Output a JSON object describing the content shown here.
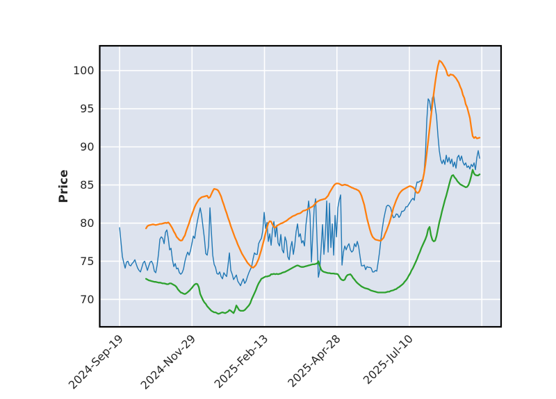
{
  "chart_data": {
    "type": "line",
    "title": "",
    "xlabel": "",
    "ylabel": "Price",
    "grid": true,
    "legend": null,
    "plot_background": "#dde3ee",
    "gridline_color": "#ffffff",
    "frame_color": "#000000",
    "ylim": [
      66.4,
      103.25
    ],
    "yticks": [
      70,
      75,
      80,
      85,
      90,
      95,
      100
    ],
    "ytick_labels": [
      "70",
      "75",
      "80",
      "85",
      "90",
      "95",
      "100"
    ],
    "xlim_days": [
      -13.7,
      263.3
    ],
    "xticks_days": [
      0,
      50,
      100,
      150,
      200,
      250
    ],
    "xtick_labels": [
      "2024-Sep-19",
      "2024-Nov-29",
      "2025-Feb-13",
      "2025-Apr-28",
      "2025-Jul-10",
      ""
    ],
    "xtick_rotation_deg": 45,
    "series": [
      {
        "name": "blue-line",
        "color": "#1f77b4",
        "linewidth": 1.4,
        "start_day": 0,
        "day_step": 0.9594,
        "values": [
          79.4,
          77.5,
          75.6,
          74.8,
          74.1,
          74.9,
          75.0,
          74.5,
          74.4,
          74.7,
          74.9,
          75.2,
          74.6,
          74.1,
          73.8,
          73.6,
          74.2,
          74.8,
          75.0,
          74.4,
          73.8,
          74.4,
          74.9,
          75.0,
          74.6,
          73.7,
          73.5,
          74.5,
          76.0,
          77.9,
          78.2,
          78.0,
          77.3,
          78.8,
          79.1,
          78.0,
          76.5,
          76.7,
          75.2,
          74.3,
          74.7,
          74.0,
          74.1,
          73.5,
          73.3,
          73.5,
          74.0,
          75.0,
          75.7,
          76.2,
          75.8,
          76.4,
          77.3,
          78.3,
          78.0,
          79.3,
          80.3,
          81.2,
          82.0,
          81.0,
          79.5,
          78.0,
          76.0,
          75.8,
          77.0,
          82.0,
          78.9,
          75.8,
          74.6,
          74.2,
          73.4,
          73.3,
          73.6,
          73.0,
          72.7,
          73.5,
          73.2,
          73.0,
          74.5,
          76.1,
          73.8,
          73.3,
          72.6,
          72.9,
          73.2,
          72.4,
          72.1,
          71.8,
          72.3,
          72.7,
          72.1,
          72.4,
          73.0,
          73.5,
          73.9,
          74.3,
          75.3,
          76.1,
          75.9,
          75.9,
          77.3,
          77.7,
          78.0,
          79.0,
          81.4,
          79.3,
          80.1,
          77.6,
          78.6,
          77.1,
          79.2,
          80.2,
          78.2,
          79.7,
          77.4,
          77.0,
          78.5,
          76.5,
          76.1,
          78.2,
          77.6,
          75.6,
          75.2,
          76.8,
          77.6,
          75.9,
          77.1,
          78.9,
          79.9,
          78.2,
          78.6,
          77.4,
          77.7,
          77.0,
          79.7,
          81.2,
          82.9,
          81.0,
          74.9,
          78.6,
          82.0,
          83.2,
          78.0,
          72.9,
          73.8,
          76.8,
          79.8,
          75.9,
          78.5,
          82.9,
          76.2,
          82.6,
          76.8,
          79.9,
          75.8,
          81.0,
          78.2,
          82.0,
          83.0,
          83.7,
          74.5,
          76.2,
          77.0,
          76.5,
          77.0,
          77.3,
          76.5,
          76.2,
          76.4,
          77.3,
          76.9,
          77.6,
          76.9,
          75.6,
          74.4,
          74.4,
          74.5,
          73.9,
          74.3,
          74.2,
          74.2,
          74.1,
          73.6,
          73.6,
          73.8,
          73.7,
          74.9,
          76.2,
          77.9,
          79.3,
          80.5,
          81.4,
          82.2,
          82.35,
          82.25,
          82.0,
          81.2,
          80.7,
          80.8,
          81.2,
          81.15,
          80.75,
          81.0,
          81.55,
          81.55,
          81.7,
          82.15,
          82.15,
          82.45,
          82.75,
          83.05,
          83.25,
          83.0,
          84.6,
          85.4,
          85.35,
          85.5,
          85.55,
          85.75,
          86.6,
          89.0,
          93.5,
          96.3,
          96.0,
          94.7,
          96.4,
          96.8,
          95.3,
          94.0,
          91.5,
          89.5,
          88.3,
          87.8,
          88.3,
          87.7,
          88.9,
          88.0,
          88.6,
          87.8,
          88.4,
          87.4,
          88.0,
          87.2,
          88.6,
          88.9,
          88.2,
          88.8,
          88.0,
          87.6,
          87.9,
          87.3,
          87.5,
          87.1,
          87.7,
          87.4,
          87.9,
          87.0,
          88.6,
          89.5,
          88.5
        ]
      },
      {
        "name": "orange-line",
        "color": "#ff7f0e",
        "linewidth": 2.3,
        "start_day": 18.23,
        "day_step": 0.9594,
        "values": [
          79.3,
          79.6,
          79.7,
          79.75,
          79.8,
          79.85,
          79.8,
          79.75,
          79.8,
          79.85,
          79.9,
          79.9,
          79.95,
          80.0,
          80.05,
          80.0,
          80.1,
          79.9,
          79.6,
          79.3,
          78.9,
          78.6,
          78.2,
          78.0,
          77.8,
          77.7,
          77.75,
          78.1,
          78.4,
          79.0,
          79.5,
          80.0,
          80.6,
          81.1,
          81.6,
          82.1,
          82.5,
          82.8,
          83.1,
          83.25,
          83.4,
          83.45,
          83.5,
          83.55,
          83.6,
          83.3,
          83.4,
          83.8,
          84.2,
          84.5,
          84.45,
          84.4,
          84.25,
          83.9,
          83.5,
          82.9,
          82.4,
          81.8,
          81.3,
          80.7,
          80.2,
          79.6,
          79.1,
          78.6,
          78.1,
          77.7,
          77.2,
          76.8,
          76.4,
          76.0,
          75.7,
          75.4,
          75.1,
          74.8,
          74.6,
          74.4,
          74.25,
          74.15,
          74.3,
          74.5,
          74.9,
          75.3,
          75.9,
          76.5,
          77.2,
          77.9,
          78.7,
          79.4,
          80.0,
          80.25,
          80.2,
          79.8,
          79.5,
          79.4,
          79.6,
          79.75,
          79.85,
          79.95,
          80.0,
          80.1,
          80.2,
          80.3,
          80.45,
          80.6,
          80.7,
          80.85,
          80.95,
          81.0,
          81.1,
          81.2,
          81.25,
          81.3,
          81.45,
          81.6,
          81.65,
          81.7,
          81.8,
          81.9,
          82.0,
          82.1,
          82.2,
          82.4,
          82.6,
          82.8,
          82.9,
          83.0,
          83.05,
          83.1,
          83.15,
          83.2,
          83.4,
          83.6,
          84.0,
          84.3,
          84.6,
          84.9,
          85.1,
          85.2,
          85.2,
          85.15,
          85.05,
          84.95,
          85.0,
          85.05,
          85.0,
          84.95,
          84.85,
          84.75,
          84.65,
          84.6,
          84.5,
          84.45,
          84.35,
          84.25,
          84.0,
          83.6,
          83.0,
          82.4,
          81.5,
          80.6,
          79.9,
          79.2,
          78.6,
          78.2,
          78.0,
          77.85,
          77.8,
          77.75,
          77.7,
          77.7,
          77.9,
          78.1,
          78.6,
          79.0,
          79.5,
          80.0,
          80.6,
          81.3,
          82.0,
          82.5,
          83.0,
          83.4,
          83.8,
          84.05,
          84.25,
          84.4,
          84.5,
          84.6,
          84.7,
          84.8,
          84.85,
          84.8,
          84.7,
          84.55,
          84.2,
          83.95,
          84.0,
          84.3,
          84.9,
          85.6,
          86.5,
          87.7,
          89.2,
          90.8,
          92.4,
          94.0,
          95.5,
          97.0,
          98.4,
          99.6,
          100.6,
          101.3,
          101.2,
          101.0,
          100.7,
          100.4,
          100.0,
          99.4,
          99.3,
          99.5,
          99.45,
          99.4,
          99.2,
          99.0,
          98.7,
          98.4,
          97.9,
          97.5,
          96.8,
          96.4,
          95.6,
          95.2,
          94.5,
          93.8,
          92.5,
          91.4,
          91.15,
          91.3,
          91.1,
          91.15,
          91.2
        ]
      },
      {
        "name": "green-line",
        "color": "#2ca02c",
        "linewidth": 2.3,
        "start_day": 18.23,
        "day_step": 0.9594,
        "values": [
          72.7,
          72.6,
          72.5,
          72.45,
          72.4,
          72.35,
          72.3,
          72.3,
          72.25,
          72.2,
          72.2,
          72.15,
          72.1,
          72.1,
          72.05,
          72.0,
          72.0,
          72.1,
          72.1,
          72.0,
          71.9,
          71.8,
          71.6,
          71.3,
          71.1,
          70.9,
          70.85,
          70.75,
          70.7,
          70.8,
          70.95,
          71.1,
          71.3,
          71.5,
          71.75,
          71.95,
          72.05,
          72.0,
          71.6,
          70.7,
          70.3,
          69.9,
          69.6,
          69.4,
          69.1,
          68.9,
          68.7,
          68.5,
          68.4,
          68.3,
          68.3,
          68.2,
          68.1,
          68.15,
          68.25,
          68.3,
          68.25,
          68.2,
          68.3,
          68.4,
          68.6,
          68.5,
          68.35,
          68.2,
          68.6,
          69.2,
          68.9,
          68.6,
          68.5,
          68.5,
          68.5,
          68.6,
          68.8,
          69.0,
          69.2,
          69.5,
          70.0,
          70.4,
          70.8,
          71.2,
          71.7,
          72.1,
          72.4,
          72.7,
          72.8,
          72.9,
          73.0,
          73.0,
          73.05,
          73.1,
          73.3,
          73.3,
          73.35,
          73.3,
          73.35,
          73.3,
          73.35,
          73.4,
          73.5,
          73.55,
          73.6,
          73.7,
          73.8,
          73.9,
          74.0,
          74.1,
          74.2,
          74.3,
          74.4,
          74.45,
          74.4,
          74.3,
          74.25,
          74.25,
          74.3,
          74.35,
          74.4,
          74.45,
          74.5,
          74.55,
          74.6,
          74.6,
          74.65,
          74.7,
          75.0,
          74.4,
          73.9,
          73.7,
          73.6,
          73.55,
          73.5,
          73.45,
          73.45,
          73.4,
          73.4,
          73.4,
          73.35,
          73.35,
          73.3,
          73.0,
          72.7,
          72.55,
          72.5,
          72.6,
          73.0,
          73.2,
          73.25,
          73.3,
          73.1,
          72.8,
          72.6,
          72.35,
          72.15,
          72.0,
          71.85,
          71.7,
          71.6,
          71.5,
          71.45,
          71.4,
          71.35,
          71.25,
          71.15,
          71.1,
          71.05,
          71.0,
          70.95,
          70.9,
          70.9,
          70.9,
          70.9,
          70.9,
          70.9,
          70.95,
          71.0,
          71.0,
          71.1,
          71.15,
          71.2,
          71.3,
          71.35,
          71.5,
          71.6,
          71.75,
          71.9,
          72.05,
          72.3,
          72.5,
          72.75,
          73.1,
          73.4,
          73.8,
          74.1,
          74.5,
          74.9,
          75.3,
          75.8,
          76.2,
          76.7,
          77.1,
          77.5,
          77.9,
          78.4,
          79.2,
          79.5,
          78.4,
          77.8,
          77.6,
          77.7,
          78.3,
          79.2,
          80.1,
          80.8,
          81.6,
          82.3,
          83.0,
          83.6,
          84.3,
          85.0,
          85.7,
          86.2,
          86.3,
          86.0,
          85.8,
          85.5,
          85.3,
          85.1,
          85.0,
          84.9,
          84.8,
          84.7,
          84.75,
          85.0,
          85.5,
          86.2,
          87.0,
          86.5,
          86.3,
          86.25,
          86.25,
          86.4
        ]
      }
    ]
  },
  "layout_note": ""
}
